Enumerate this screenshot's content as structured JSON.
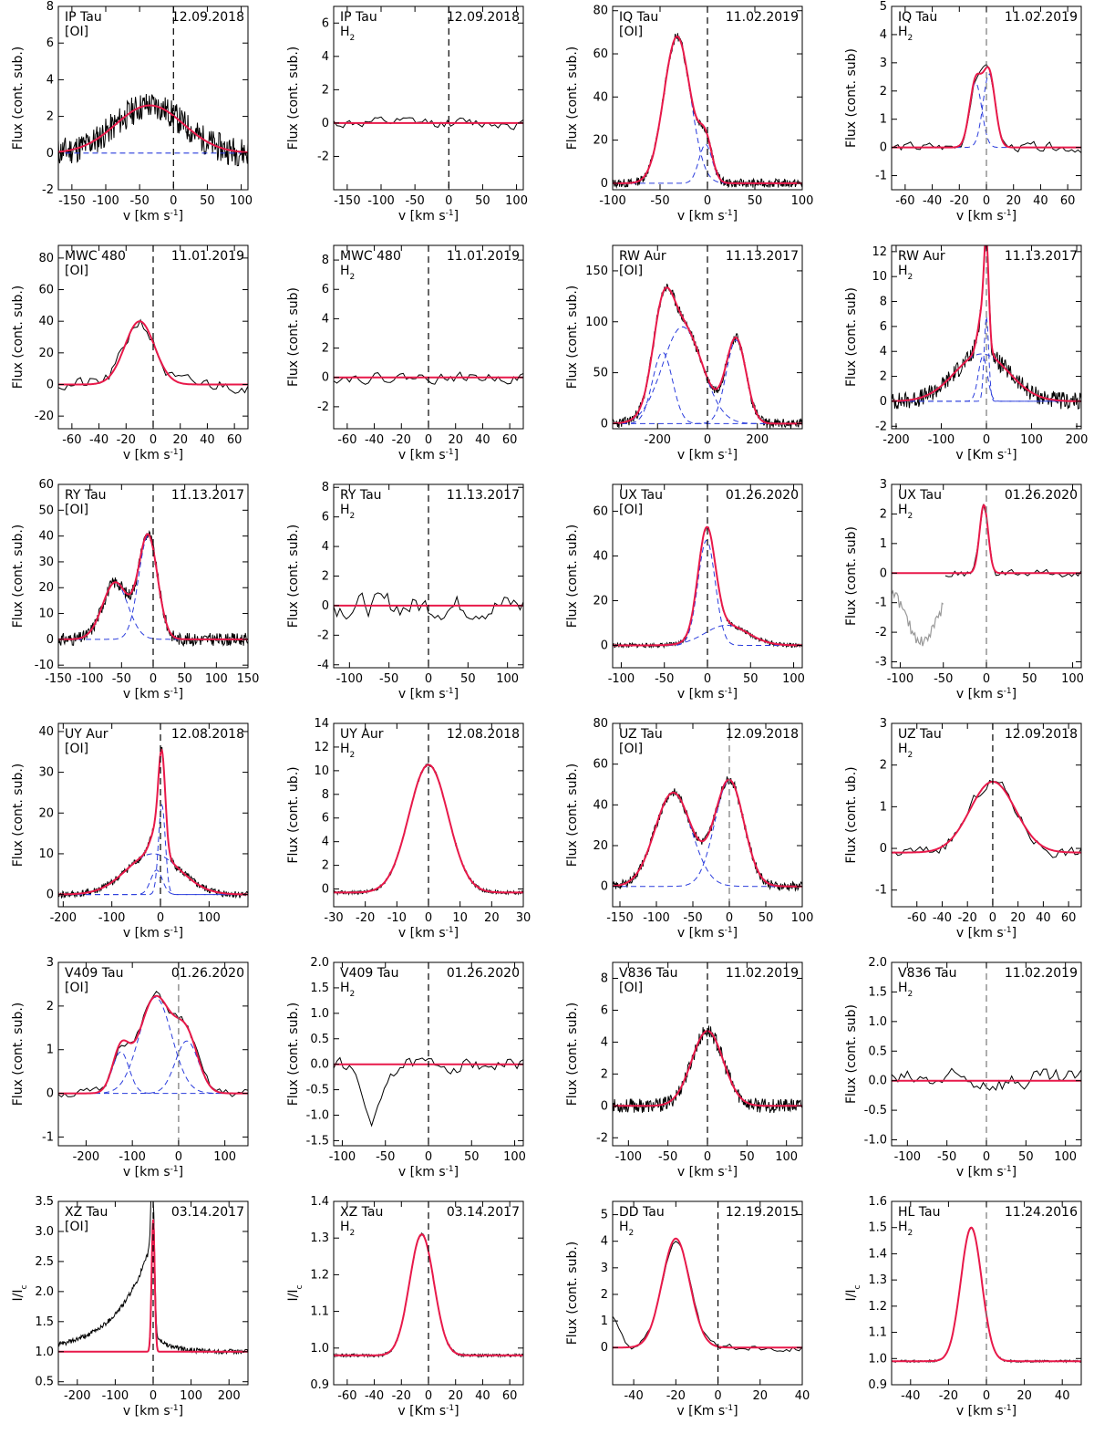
{
  "figure": {
    "description_rows": 6,
    "description_cols": 4
  },
  "styles": {
    "data_color": "#000000",
    "fit_color": "#e8194a",
    "component_color": "#2a3cdc",
    "zero_line_color": "#000000",
    "gray_data_color": "#999999"
  },
  "chart_data": [
    {
      "type": "line",
      "row": 0,
      "col": 0,
      "star": "IP Tau",
      "line": "[OI]",
      "date": "12.09.2018",
      "xlabel": "v [km s^-1]",
      "ylabel": "Flux (cont. sub.)",
      "xlim": [
        -170,
        110
      ],
      "ylim": [
        -2,
        8
      ],
      "xticks": [
        -150,
        -100,
        -50,
        0,
        50,
        100
      ],
      "yticks": [
        -2,
        0,
        2,
        4,
        6,
        8
      ],
      "vline": 0,
      "vline_style": "dark",
      "noise": 0.8,
      "seed": 11,
      "fit": [
        {
          "a": 2.6,
          "mu": -35,
          "sig": 50
        }
      ],
      "components": "flat",
      "show_fit": true
    },
    {
      "type": "line",
      "row": 0,
      "col": 1,
      "star": "IP Tau",
      "line": "H2",
      "date": "12.09.2018",
      "xlabel": "v [km s^-1]",
      "ylabel": "Flux (cont. sub.)",
      "xlim": [
        -170,
        110
      ],
      "ylim": [
        -4,
        7
      ],
      "xticks": [
        -150,
        -100,
        -50,
        0,
        50,
        100
      ],
      "yticks": [
        -2,
        0,
        2,
        4,
        6
      ],
      "vline": 0,
      "vline_style": "dark",
      "noise": 0.55,
      "seed": 12,
      "smooth": true,
      "fit": [],
      "components": "none",
      "show_fit": true
    },
    {
      "type": "line",
      "row": 0,
      "col": 2,
      "star": "IQ Tau",
      "line": "[OI]",
      "date": "11.02.2019",
      "xlabel": "v [km s^-1]",
      "ylabel": "Flux (cont. sub.)",
      "xlim": [
        -100,
        100
      ],
      "ylim": [
        -3,
        82
      ],
      "xticks": [
        -100,
        -50,
        0,
        50,
        100
      ],
      "yticks": [
        0,
        20,
        40,
        60,
        80
      ],
      "vline": 0,
      "vline_style": "dark",
      "noise": 2.0,
      "seed": 13,
      "fit": [
        {
          "a": 68,
          "mu": -32,
          "sig": 14
        },
        {
          "a": 18,
          "mu": -2,
          "sig": 7
        }
      ],
      "components": "gauss",
      "show_fit": true
    },
    {
      "type": "line",
      "row": 0,
      "col": 3,
      "star": "IQ Tau",
      "line": "H2",
      "date": "11.02.2019",
      "xlabel": "v [km s^-1]",
      "ylabel": "Flux (cont. sub)",
      "xlim": [
        -70,
        70
      ],
      "ylim": [
        -1.5,
        5
      ],
      "xticks": [
        -60,
        -40,
        -20,
        0,
        20,
        40,
        60
      ],
      "yticks": [
        -1,
        0,
        1,
        2,
        3,
        4,
        5
      ],
      "vline": 0,
      "vline_style": "gray",
      "noise": 0.3,
      "seed": 14,
      "smooth": true,
      "fit": [
        {
          "a": 2.3,
          "mu": -8,
          "sig": 4.5
        },
        {
          "a": 2.6,
          "mu": 2,
          "sig": 4.5
        }
      ],
      "components": "gauss",
      "show_fit": true
    },
    {
      "type": "line",
      "row": 1,
      "col": 0,
      "star": "MWC 480",
      "line": "[OI]",
      "date": "11.01.2019",
      "xlabel": "v [km s^-1]",
      "ylabel": "Flux (cont. sub.)",
      "xlim": [
        -70,
        70
      ],
      "ylim": [
        -28,
        88
      ],
      "xticks": [
        -60,
        -40,
        -20,
        0,
        20,
        40,
        60
      ],
      "yticks": [
        -20,
        0,
        20,
        40,
        60,
        80
      ],
      "vline": 0,
      "vline_style": "dark",
      "noise": 8,
      "seed": 21,
      "smooth": true,
      "fit": [
        {
          "a": 40,
          "mu": -10,
          "sig": 11
        }
      ],
      "components": "none",
      "show_fit": true
    },
    {
      "type": "line",
      "row": 1,
      "col": 1,
      "star": "MWC 480",
      "line": "H2",
      "date": "11.01.2019",
      "xlabel": "v [km s^-1]",
      "ylabel": "Flux (cont. sub)",
      "xlim": [
        -70,
        70
      ],
      "ylim": [
        -3.5,
        9
      ],
      "xticks": [
        -60,
        -40,
        -20,
        0,
        20,
        40,
        60
      ],
      "yticks": [
        -2,
        0,
        2,
        4,
        6,
        8
      ],
      "vline": 0,
      "vline_style": "dark",
      "noise": 0.6,
      "seed": 22,
      "smooth": true,
      "fit": [],
      "components": "none",
      "show_fit": true
    },
    {
      "type": "line",
      "row": 1,
      "col": 2,
      "star": "RW Aur",
      "line": "[OI]",
      "date": "11.13.2017",
      "xlabel": "v [km s^-1]",
      "ylabel": "Flux (cont. sub.)",
      "xlim": [
        -380,
        380
      ],
      "ylim": [
        -5,
        175
      ],
      "xticks": [
        -200,
        0,
        200
      ],
      "yticks": [
        0,
        50,
        100,
        150
      ],
      "vline": 0,
      "vline_style": "dark",
      "noise": 5,
      "seed": 23,
      "fit": [
        {
          "a": 70,
          "mu": -180,
          "sig": 40
        },
        {
          "a": 95,
          "mu": -100,
          "sig": 80
        },
        {
          "a": 82,
          "mu": 115,
          "sig": 40
        }
      ],
      "components": "gauss",
      "show_fit": true
    },
    {
      "type": "line",
      "row": 1,
      "col": 3,
      "star": "RW Aur",
      "line": "H2",
      "date": "11.13.2017",
      "xlabel": "v [Km s^-1]",
      "ylabel": "Flux (cont. sub)",
      "xlim": [
        -210,
        210
      ],
      "ylim": [
        -2.2,
        12.5
      ],
      "xticks": [
        -200,
        -100,
        0,
        100,
        200
      ],
      "yticks": [
        -2,
        0,
        2,
        4,
        6,
        8,
        10,
        12
      ],
      "vline": 0,
      "vline_style": "gray",
      "noise": 0.7,
      "seed": 24,
      "fit": [
        {
          "a": 3.8,
          "mu": -10,
          "sig": 60
        },
        {
          "a": 3.6,
          "mu": -8,
          "sig": 10
        },
        {
          "a": 6.8,
          "mu": 0,
          "sig": 5
        }
      ],
      "components": "gauss",
      "show_fit": true
    },
    {
      "type": "line",
      "row": 2,
      "col": 0,
      "star": "RY Tau",
      "line": "[OI]",
      "date": "11.13.2017",
      "xlabel": "v [km s^-1]",
      "ylabel": "Flux (cont. sub.)",
      "xlim": [
        -150,
        150
      ],
      "ylim": [
        -11,
        60
      ],
      "xticks": [
        -150,
        -100,
        -50,
        0,
        50,
        100,
        150
      ],
      "yticks": [
        -10,
        0,
        10,
        20,
        30,
        40,
        50,
        60
      ],
      "vline": 0,
      "vline_style": "dark",
      "noise": 2.5,
      "seed": 31,
      "fit": [
        {
          "a": 22,
          "mu": -60,
          "sig": 20
        },
        {
          "a": 40,
          "mu": -8,
          "sig": 15
        }
      ],
      "components": "gauss",
      "show_fit": true
    },
    {
      "type": "line",
      "row": 2,
      "col": 1,
      "star": "RY Tau",
      "line": "H2",
      "date": "11.13.2017",
      "xlabel": "v [km s^-1]",
      "ylabel": "Flux (cont. sub.)",
      "xlim": [
        -120,
        120
      ],
      "ylim": [
        -4.2,
        8.2
      ],
      "xticks": [
        -100,
        -50,
        0,
        50,
        100
      ],
      "yticks": [
        -4,
        -2,
        0,
        2,
        4,
        6,
        8
      ],
      "vline": 0,
      "vline_style": "dark",
      "noise": 1.4,
      "seed": 32,
      "smooth": true,
      "fit": [],
      "components": "none",
      "show_fit": true
    },
    {
      "type": "line",
      "row": 2,
      "col": 2,
      "star": "UX Tau",
      "line": "[OI]",
      "date": "01.26.2020",
      "xlabel": "v [km s^-1]",
      "ylabel": "Flux (cont. sub.)",
      "xlim": [
        -110,
        110
      ],
      "ylim": [
        -10,
        72
      ],
      "xticks": [
        -100,
        -50,
        0,
        50,
        100
      ],
      "yticks": [
        0,
        20,
        40,
        60
      ],
      "vline": 0,
      "vline_style": "dark",
      "noise": 1,
      "seed": 33,
      "fit": [
        {
          "a": 47,
          "mu": -1,
          "sig": 10
        },
        {
          "a": 9,
          "mu": 22,
          "sig": 25
        }
      ],
      "components": "gauss",
      "show_fit": true
    },
    {
      "type": "line",
      "row": 2,
      "col": 3,
      "star": "UX Tau",
      "line": "H2",
      "date": "01.26.2020",
      "xlabel": "v [km s^-1]",
      "ylabel": "Flux (cont. sub)",
      "xlim": [
        -110,
        110
      ],
      "ylim": [
        -3.2,
        3
      ],
      "xticks": [
        -100,
        -50,
        0,
        50,
        100
      ],
      "yticks": [
        -3,
        -2,
        -1,
        0,
        1,
        2,
        3
      ],
      "vline": 0,
      "vline_style": "gray",
      "noise": 0.25,
      "seed": 34,
      "smooth": true,
      "fit": [
        {
          "a": 2.3,
          "mu": -3,
          "sig": 5
        }
      ],
      "components": "none",
      "show_fit": true,
      "gray_dip": true
    },
    {
      "type": "line",
      "row": 3,
      "col": 0,
      "star": "UY Aur",
      "line": "[OI]",
      "date": "12.08.2018",
      "xlabel": "v [km s^-1]",
      "ylabel": "Flux (cont. sub.)",
      "xlim": [
        -210,
        180
      ],
      "ylim": [
        -3,
        42
      ],
      "xticks": [
        -200,
        -100,
        0,
        100
      ],
      "yticks": [
        0,
        10,
        20,
        30,
        40
      ],
      "vline": 0,
      "vline_style": "dark",
      "noise": 0.9,
      "seed": 41,
      "fit": [
        {
          "a": 10,
          "mu": -15,
          "sig": 55
        },
        {
          "a": 6,
          "mu": -8,
          "sig": 12
        },
        {
          "a": 22,
          "mu": 3,
          "sig": 7
        }
      ],
      "components": "gauss",
      "show_fit": true
    },
    {
      "type": "line",
      "row": 3,
      "col": 1,
      "star": "UY Aur",
      "line": "H2",
      "date": "12.08.2018",
      "xlabel": "v [km s^-1]",
      "ylabel": "Flux (cont. ub.)",
      "xlim": [
        -30,
        30
      ],
      "ylim": [
        -1.5,
        14
      ],
      "xticks": [
        -30,
        -20,
        -10,
        0,
        10,
        20,
        30
      ],
      "yticks": [
        0,
        2,
        4,
        6,
        8,
        10,
        12,
        14
      ],
      "vline": 0,
      "vline_style": "dark",
      "noise": 0.15,
      "seed": 42,
      "fit": [
        {
          "a": 10.8,
          "mu": 0,
          "sig": 6.2
        }
      ],
      "components": "none",
      "show_fit": true,
      "baseline": -0.3
    },
    {
      "type": "line",
      "row": 3,
      "col": 2,
      "star": "UZ Tau",
      "line": "[OI]",
      "date": "12.09.2018",
      "xlabel": "v [km s^-1]",
      "ylabel": "Flux (cont. sub.)",
      "xlim": [
        -160,
        100
      ],
      "ylim": [
        -10,
        80
      ],
      "xticks": [
        -150,
        -100,
        -50,
        0,
        50,
        100
      ],
      "yticks": [
        0,
        20,
        40,
        60,
        80
      ],
      "vline": 0,
      "vline_style": "gray",
      "noise": 2.2,
      "seed": 43,
      "fit": [
        {
          "a": 46,
          "mu": -77,
          "sig": 25
        },
        {
          "a": 52,
          "mu": 0,
          "sig": 20
        }
      ],
      "components": "gauss",
      "show_fit": true
    },
    {
      "type": "line",
      "row": 3,
      "col": 3,
      "star": "UZ Tau",
      "line": "H2",
      "date": "12.09.2018",
      "xlabel": "v [km s^-1]",
      "ylabel": "Flux (cont. ub.)",
      "xlim": [
        -80,
        70
      ],
      "ylim": [
        -1.4,
        3
      ],
      "xticks": [
        -60,
        -40,
        -20,
        0,
        20,
        40,
        60
      ],
      "yticks": [
        -1,
        0,
        1,
        2,
        3
      ],
      "vline": 0,
      "vline_style": "dark",
      "noise": 0.25,
      "seed": 44,
      "smooth": true,
      "fit": [
        {
          "a": 1.7,
          "mu": 0,
          "sig": 18
        }
      ],
      "components": "none",
      "show_fit": true,
      "baseline": -0.1
    },
    {
      "type": "line",
      "row": 4,
      "col": 0,
      "star": "V409 Tau",
      "line": "[OI]",
      "date": "01.26.2020",
      "xlabel": "v [km s^-1]",
      "ylabel": "Flux (cont. sub.)",
      "xlim": [
        -260,
        150
      ],
      "ylim": [
        -1.2,
        3
      ],
      "xticks": [
        -200,
        -100,
        0,
        100
      ],
      "yticks": [
        -1,
        0,
        1,
        2,
        3
      ],
      "vline": 0,
      "vline_style": "gray",
      "noise": 0.18,
      "seed": 51,
      "smooth": true,
      "fit": [
        {
          "a": 0.95,
          "mu": -125,
          "sig": 18
        },
        {
          "a": 2.2,
          "mu": -50,
          "sig": 35
        },
        {
          "a": 1.2,
          "mu": 18,
          "sig": 25
        }
      ],
      "components": "gauss",
      "show_fit": true
    },
    {
      "type": "line",
      "row": 4,
      "col": 1,
      "star": "V409 Tau",
      "line": "H2",
      "date": "01.26.2020",
      "xlabel": "v [km s^-1]",
      "ylabel": "Flux (cont. sub.)",
      "xlim": [
        -110,
        110
      ],
      "ylim": [
        -1.6,
        2
      ],
      "xticks": [
        -100,
        -50,
        0,
        50,
        100
      ],
      "yticks": [
        -1.5,
        -1.0,
        -0.5,
        0.0,
        0.5,
        1.0,
        1.5,
        2.0
      ],
      "vline": 0,
      "vline_style": "dark",
      "noise": 0.25,
      "seed": 52,
      "smooth": true,
      "fit": [],
      "components": "none",
      "show_fit": true,
      "dip": true
    },
    {
      "type": "line",
      "row": 4,
      "col": 2,
      "star": "V836 Tau",
      "line": "[OI]",
      "date": "11.02.2019",
      "xlabel": "v [km s^-1]",
      "ylabel": "Flux (cont. sub.)",
      "xlim": [
        -120,
        120
      ],
      "ylim": [
        -2.5,
        9
      ],
      "xticks": [
        -100,
        -50,
        0,
        50,
        100
      ],
      "yticks": [
        -2,
        0,
        2,
        4,
        6,
        8
      ],
      "vline": 0,
      "vline_style": "dark",
      "noise": 0.45,
      "seed": 53,
      "fit": [
        {
          "a": 4.7,
          "mu": 0,
          "sig": 20
        }
      ],
      "components": "none",
      "show_fit": true
    },
    {
      "type": "line",
      "row": 4,
      "col": 3,
      "star": "V836 Tau",
      "line": "H2",
      "date": "11.02.2019",
      "xlabel": "v [km s^-1]",
      "ylabel": "Flux (cont. sub)",
      "xlim": [
        -120,
        120
      ],
      "ylim": [
        -1.1,
        2
      ],
      "xticks": [
        -100,
        -50,
        0,
        50,
        100
      ],
      "yticks": [
        -1.0,
        -0.5,
        0.0,
        0.5,
        1.0,
        1.5,
        2.0
      ],
      "vline": 0,
      "vline_style": "gray",
      "noise": 0.3,
      "seed": 54,
      "smooth": true,
      "fit": [],
      "components": "none",
      "show_fit": true
    },
    {
      "type": "line",
      "row": 5,
      "col": 0,
      "star": "XZ Tau",
      "line": "[OI]",
      "date": "03.14.2017",
      "xlabel": "v [km s^-1]",
      "ylabel": "I/I_c",
      "xlim": [
        -250,
        250
      ],
      "ylim": [
        0.45,
        3.5
      ],
      "xticks": [
        -200,
        -100,
        0,
        100,
        200
      ],
      "yticks": [
        0.5,
        1.0,
        1.5,
        2.0,
        2.5,
        3.0,
        3.5
      ],
      "vline": 0,
      "vline_style": "dark",
      "noise": 0.04,
      "seed": 61,
      "fit": [
        {
          "a": 2.2,
          "mu": 0,
          "sig": 4
        }
      ],
      "components": "none",
      "show_fit": true,
      "baseline": 1.0,
      "xz": true
    },
    {
      "type": "line",
      "row": 5,
      "col": 1,
      "star": "XZ Tau",
      "line": "H2",
      "date": "03.14.2017",
      "xlabel": "v [Km s^-1]",
      "ylabel": "I/I_c",
      "xlim": [
        -70,
        70
      ],
      "ylim": [
        0.9,
        1.4
      ],
      "xticks": [
        -60,
        -40,
        -20,
        0,
        20,
        40,
        60
      ],
      "yticks": [
        0.9,
        1.0,
        1.1,
        1.2,
        1.3,
        1.4
      ],
      "vline": 0,
      "vline_style": "dark",
      "noise": 0.004,
      "seed": 62,
      "fit": [
        {
          "a": 0.33,
          "mu": -5,
          "sig": 9
        }
      ],
      "components": "none",
      "show_fit": true,
      "baseline": 0.98
    },
    {
      "type": "line",
      "row": 5,
      "col": 2,
      "star": "DD Tau",
      "line": "H2",
      "date": "12.19.2015",
      "xlabel": "v [Km s^-1]",
      "ylabel": "Flux (cont. sub.)",
      "xlim": [
        -50,
        40
      ],
      "ylim": [
        -1.4,
        5.5
      ],
      "xticks": [
        -40,
        -20,
        0,
        20,
        40
      ],
      "yticks": [
        0,
        1,
        2,
        3,
        4,
        5
      ],
      "vline": 0,
      "vline_style": "dark",
      "noise": 0.22,
      "seed": 63,
      "smooth": true,
      "fit": [
        {
          "a": 4.1,
          "mu": -20,
          "sig": 6.5
        }
      ],
      "components": "none",
      "show_fit": true,
      "ddtau": true
    },
    {
      "type": "line",
      "row": 5,
      "col": 3,
      "star": "HL Tau",
      "line": "H2",
      "date": "11.24.2016",
      "xlabel": "v [km s^-1]",
      "ylabel": "I/I_c",
      "xlim": [
        -50,
        50
      ],
      "ylim": [
        0.9,
        1.6
      ],
      "xticks": [
        -40,
        -20,
        0,
        20,
        40
      ],
      "yticks": [
        0.9,
        1.0,
        1.1,
        1.2,
        1.3,
        1.4,
        1.5,
        1.6
      ],
      "vline": 0,
      "vline_style": "gray",
      "noise": 0.004,
      "seed": 64,
      "fit": [
        {
          "a": 0.51,
          "mu": -8,
          "sig": 5.5
        }
      ],
      "components": "none",
      "show_fit": true,
      "baseline": 0.99
    }
  ]
}
